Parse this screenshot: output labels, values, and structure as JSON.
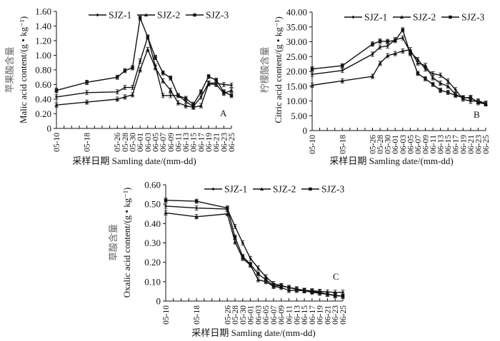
{
  "chart_data": [
    {
      "type": "line",
      "panel_label": "A",
      "title": "",
      "xlabel": "采样日期 Samling date/(mm-dd)",
      "ylabel_cn": "苹果酸含量",
      "ylabel": "Malic acid content/(g • kg⁻¹)",
      "ylim": [
        0,
        1.6
      ],
      "yticks": [
        "0",
        "0.20",
        "0.40",
        "0.60",
        "0.80",
        "1.00",
        "1.20",
        "1.40",
        "1.60"
      ],
      "ytick_values": [
        0,
        0.2,
        0.4,
        0.6,
        0.8,
        1.0,
        1.2,
        1.4,
        1.6
      ],
      "x": [
        "05-10",
        "05-18",
        "05-26",
        "05-28",
        "05-30",
        "06-01",
        "06-03",
        "06-05",
        "06-07",
        "06-09",
        "06-11",
        "06-13",
        "06-15",
        "06-17",
        "06-19",
        "06-21",
        "06-23",
        "06-25"
      ],
      "x_days": [
        0,
        8,
        16,
        18,
        20,
        22,
        24,
        26,
        28,
        30,
        32,
        34,
        36,
        38,
        40,
        42,
        44,
        46
      ],
      "legend_position": "top",
      "series": [
        {
          "name": "SJZ-1",
          "marker": "diamond",
          "values": [
            0.43,
            0.49,
            0.5,
            0.56,
            0.56,
            0.92,
            1.25,
            0.85,
            0.45,
            0.45,
            0.45,
            0.37,
            0.3,
            0.43,
            0.62,
            0.62,
            0.6,
            0.59
          ]
        },
        {
          "name": "SJZ-2",
          "marker": "triangle",
          "values": [
            0.32,
            0.36,
            0.4,
            0.43,
            0.46,
            0.8,
            1.08,
            0.83,
            0.65,
            0.52,
            0.35,
            0.31,
            0.29,
            0.31,
            0.61,
            0.6,
            0.48,
            0.52
          ]
        },
        {
          "name": "SJZ-3",
          "marker": "square",
          "values": [
            0.52,
            0.63,
            0.7,
            0.79,
            0.83,
            1.51,
            1.25,
            0.97,
            0.76,
            0.69,
            0.45,
            0.41,
            0.33,
            0.5,
            0.71,
            0.66,
            0.5,
            0.45
          ]
        }
      ]
    },
    {
      "type": "line",
      "panel_label": "B",
      "title": "",
      "xlabel": "采样日期 Samling date/(mm-dd)",
      "ylabel_cn": "柠檬酸含量",
      "ylabel": "Citric acid content/(g • kg⁻¹)",
      "ylim": [
        0,
        40
      ],
      "yticks": [
        "0",
        "5.00",
        "10.00",
        "15.00",
        "20.00",
        "25.00",
        "30.00",
        "35.00",
        "40.00"
      ],
      "ytick_values": [
        0,
        5,
        10,
        15,
        20,
        25,
        30,
        35,
        40
      ],
      "x": [
        "05-10",
        "05-18",
        "05-26",
        "05-28",
        "05-30",
        "06-01",
        "06-03",
        "06-05",
        "06-07",
        "06-09",
        "06-11",
        "06-13",
        "06-15",
        "06-17",
        "06-19",
        "06-21",
        "06-23",
        "06-25"
      ],
      "x_days": [
        0,
        8,
        16,
        18,
        20,
        22,
        24,
        26,
        28,
        30,
        32,
        34,
        36,
        38,
        40,
        42,
        44,
        46
      ],
      "legend_position": "top",
      "series": [
        {
          "name": "SJZ-1",
          "marker": "diamond",
          "values": [
            19.0,
            20.3,
            25.8,
            28.2,
            28.6,
            30.7,
            31.3,
            26.5,
            24.0,
            20.8,
            19.2,
            18.7,
            16.7,
            13.8,
            10.6,
            9.9,
            10.0,
            9.2
          ]
        },
        {
          "name": "SJZ-2",
          "marker": "triangle",
          "values": [
            15.3,
            16.8,
            18.3,
            22.7,
            25.3,
            26.0,
            26.9,
            27.3,
            22.8,
            22.0,
            17.8,
            16.0,
            15.0,
            12.2,
            11.0,
            11.2,
            9.4,
            9.0
          ]
        },
        {
          "name": "SJZ-3",
          "marker": "square",
          "values": [
            20.8,
            21.9,
            29.2,
            30.2,
            30.1,
            30.4,
            34.0,
            26.0,
            19.3,
            17.5,
            15.6,
            13.6,
            12.9,
            11.9,
            11.1,
            11.0,
            9.7,
            9.0
          ]
        }
      ]
    },
    {
      "type": "line",
      "panel_label": "C",
      "title": "",
      "xlabel": "采样日期 Samling date/(mm-dd)",
      "ylabel_cn": "草酸含量",
      "ylabel": "Oxalic acid content/(g • kg⁻¹)",
      "ylim": [
        0,
        0.6
      ],
      "yticks": [
        "0",
        "0.10",
        "0.20",
        "0.30",
        "0.40",
        "0.50",
        "0.60"
      ],
      "ytick_values": [
        0,
        0.1,
        0.2,
        0.3,
        0.4,
        0.5,
        0.6
      ],
      "x": [
        "05-10",
        "05-18",
        "05-26",
        "05-28",
        "05-30",
        "06-01",
        "06-03",
        "06-05",
        "06-07",
        "06-09",
        "06-11",
        "06-13",
        "06-15",
        "06-17",
        "06-19",
        "06-21",
        "06-23",
        "06-25"
      ],
      "x_days": [
        0,
        8,
        16,
        18,
        20,
        22,
        24,
        26,
        28,
        30,
        32,
        34,
        36,
        38,
        40,
        42,
        44,
        46
      ],
      "legend_position": "top",
      "series": [
        {
          "name": "SJZ-1",
          "marker": "diamond",
          "values": [
            0.49,
            0.48,
            0.475,
            0.385,
            0.3,
            0.22,
            0.17,
            0.125,
            0.09,
            0.08,
            0.07,
            0.063,
            0.055,
            0.053,
            0.05,
            0.047,
            0.045,
            0.045
          ]
        },
        {
          "name": "SJZ-2",
          "marker": "triangle",
          "values": [
            0.455,
            0.435,
            0.45,
            0.305,
            0.22,
            0.185,
            0.11,
            0.1,
            0.075,
            0.07,
            0.055,
            0.055,
            0.053,
            0.045,
            0.04,
            0.035,
            0.028,
            0.025
          ]
        },
        {
          "name": "SJZ-3",
          "marker": "square",
          "values": [
            0.52,
            0.515,
            0.48,
            0.33,
            0.23,
            0.19,
            0.14,
            0.11,
            0.08,
            0.078,
            0.07,
            0.06,
            0.055,
            0.05,
            0.045,
            0.035,
            0.03,
            0.025
          ]
        }
      ]
    }
  ]
}
